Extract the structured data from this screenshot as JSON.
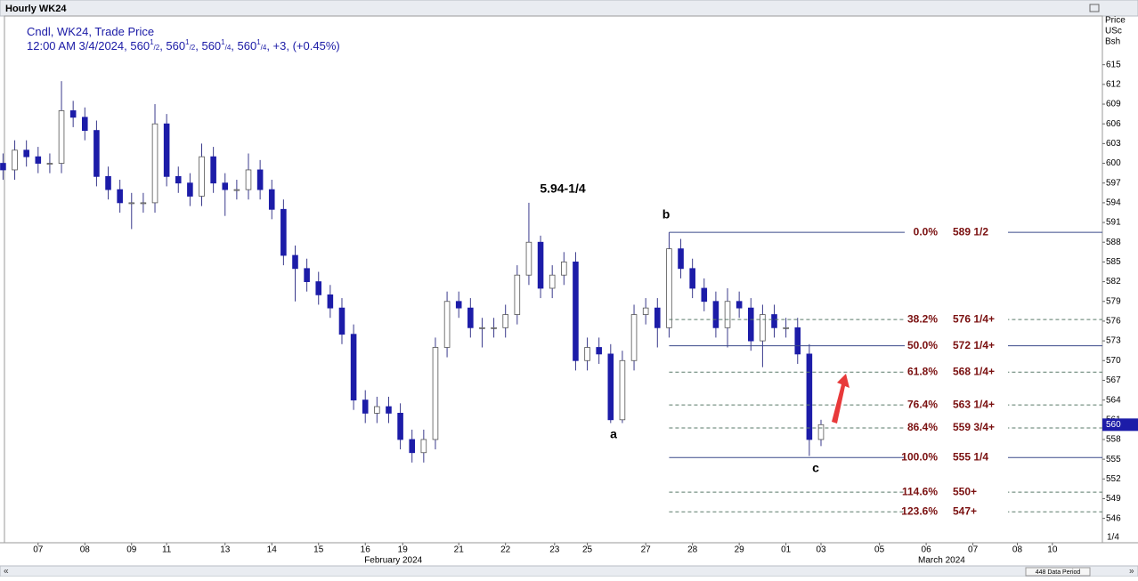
{
  "header": {
    "title": "Hourly WK24"
  },
  "footer": {
    "data_period": "448 Data Period"
  },
  "chart_data": {
    "type": "candlestick",
    "legend": [
      [
        {
          "text": "Cndl, WK24, Trade Price",
          "style": "normal"
        }
      ],
      [
        {
          "text": "12:00 AM 3/4/2024, 560",
          "style": "normal"
        },
        {
          "text": "1",
          "style": "sup"
        },
        {
          "text": "/2",
          "style": "sub"
        },
        {
          "text": ", 560",
          "style": "normal"
        },
        {
          "text": "1",
          "style": "sup"
        },
        {
          "text": "/2",
          "style": "sub"
        },
        {
          "text": ", 560",
          "style": "normal"
        },
        {
          "text": "1",
          "style": "sup"
        },
        {
          "text": "/4",
          "style": "sub"
        },
        {
          "text": ", 560",
          "style": "normal"
        },
        {
          "text": "1",
          "style": "sup"
        },
        {
          "text": "/4",
          "style": "sub"
        },
        {
          "text": ", +3, (+0.45%)",
          "style": "normal"
        }
      ]
    ],
    "y_axis_title": [
      "Price",
      "USc",
      "Bsh"
    ],
    "y_unit_label": "1/4",
    "ylim": [
      542.3,
      622.4
    ],
    "yticks": [
      546,
      549,
      552,
      555,
      558,
      561,
      564,
      567,
      570,
      573,
      576,
      579,
      582,
      585,
      588,
      591,
      594,
      597,
      600,
      603,
      606,
      609,
      612,
      615
    ],
    "xlim": [
      -0.72,
      22.77
    ],
    "xticks": [
      {
        "value": 0,
        "label": "07"
      },
      {
        "value": 1.0,
        "label": "08"
      },
      {
        "value": 2.0,
        "label": "09"
      },
      {
        "value": 2.75,
        "label": "11"
      },
      {
        "value": 4.0,
        "label": "13"
      },
      {
        "value": 5.0,
        "label": "14"
      },
      {
        "value": 6.0,
        "label": "15"
      },
      {
        "value": 7.0,
        "label": "16"
      },
      {
        "value": 7.8,
        "label": "19"
      },
      {
        "value": 9.0,
        "label": "21"
      },
      {
        "value": 10.0,
        "label": "22"
      },
      {
        "value": 11.05,
        "label": "23"
      },
      {
        "value": 11.75,
        "label": "25"
      },
      {
        "value": 13.0,
        "label": "27"
      },
      {
        "value": 14.0,
        "label": "28"
      },
      {
        "value": 15.0,
        "label": "29"
      },
      {
        "value": 16.0,
        "label": "01"
      },
      {
        "value": 16.75,
        "label": "03"
      },
      {
        "value": 18.0,
        "label": "05"
      },
      {
        "value": 19.0,
        "label": "06"
      },
      {
        "value": 20.0,
        "label": "07"
      },
      {
        "value": 20.95,
        "label": "08"
      },
      {
        "value": 21.7,
        "label": "10"
      }
    ],
    "months": [
      {
        "value": 7.6,
        "label": "February 2024"
      },
      {
        "value": 19.33,
        "label": "March 2024"
      }
    ],
    "x": [
      -0.75,
      -0.5,
      -0.25,
      0,
      0.25,
      0.5,
      0.75,
      1,
      1.25,
      1.5,
      1.75,
      2,
      2.25,
      2.5,
      2.75,
      3,
      3.25,
      3.5,
      3.75,
      4,
      4.25,
      4.5,
      4.75,
      5,
      5.25,
      5.5,
      5.75,
      6,
      6.25,
      6.5,
      6.75,
      7,
      7.25,
      7.5,
      7.75,
      8,
      8.25,
      8.5,
      8.75,
      9,
      9.25,
      9.5,
      9.75,
      10,
      10.25,
      10.5,
      10.75,
      11,
      11.25,
      11.5,
      11.75,
      12,
      12.25,
      12.5,
      12.75,
      13,
      13.25,
      13.5,
      13.75,
      14,
      14.25,
      14.5,
      14.75,
      15,
      15.25,
      15.5,
      15.75,
      16,
      16.25,
      16.5,
      16.75
    ],
    "open": [
      600,
      599,
      602,
      601,
      600,
      600,
      608,
      607,
      605,
      598,
      596,
      594,
      594,
      594,
      606,
      598,
      597,
      595,
      601,
      597,
      596,
      596,
      599,
      596,
      593,
      586,
      584,
      582,
      580,
      578,
      574,
      564,
      562,
      563,
      562,
      558,
      556,
      558,
      572,
      579,
      578,
      575,
      575,
      575,
      577,
      583,
      588,
      581,
      583,
      585,
      570,
      572,
      571,
      561,
      570,
      577,
      578,
      575,
      587,
      584,
      581,
      579,
      575,
      579,
      578,
      573,
      577,
      575,
      575,
      571,
      558
    ],
    "high": [
      601.5,
      603.5,
      603.5,
      602.5,
      601.5,
      612.5,
      609.5,
      608.5,
      606.5,
      599.5,
      597.5,
      595.5,
      595.5,
      609,
      607.5,
      599.5,
      598.5,
      603,
      602.5,
      598.5,
      597.5,
      601.5,
      600.5,
      597.5,
      594.5,
      587.5,
      585.5,
      583.5,
      581.5,
      579.5,
      575.5,
      565.5,
      564.5,
      564.5,
      563.5,
      559.5,
      559.5,
      573.5,
      580.5,
      580.5,
      579.5,
      576.5,
      576.5,
      578.5,
      584.5,
      594,
      589,
      584.5,
      586.5,
      586.5,
      573.5,
      573.5,
      572.5,
      571.5,
      578.5,
      579.5,
      579.5,
      589.5,
      588.5,
      585.5,
      582.5,
      580.5,
      581,
      580.5,
      579.5,
      578.5,
      578.5,
      576.5,
      576.5,
      572.5,
      561
    ],
    "low": [
      597.5,
      597.5,
      599.5,
      598.5,
      598.5,
      598.5,
      605.5,
      603.5,
      596.5,
      594.5,
      592.5,
      590,
      592.5,
      592.5,
      596.5,
      595.5,
      593.5,
      593.5,
      595.5,
      592,
      594.5,
      594.5,
      594.5,
      591.5,
      584.5,
      579,
      580.5,
      578.5,
      576.5,
      572.5,
      562.5,
      560.5,
      560.5,
      560.5,
      556.5,
      554.5,
      554.5,
      556.5,
      570.5,
      576.5,
      573.5,
      572,
      573.5,
      573.5,
      575.5,
      581.5,
      579.5,
      579.5,
      581.5,
      568.5,
      568.5,
      569.5,
      560.5,
      560.5,
      568.5,
      575.5,
      572,
      573.5,
      582.5,
      579.5,
      577.5,
      573.5,
      572,
      576.5,
      571.5,
      569,
      573.5,
      573.5,
      569.5,
      555.5,
      557
    ],
    "close": [
      599,
      602,
      601,
      600,
      600,
      608,
      607,
      605,
      598,
      596,
      594,
      594,
      594,
      606,
      598,
      597,
      595,
      601,
      597,
      596,
      596,
      599,
      596,
      593,
      586,
      584,
      582,
      580,
      578,
      574,
      564,
      562,
      563,
      562,
      558,
      556,
      558,
      572,
      579,
      578,
      575,
      575,
      575,
      577,
      583,
      588,
      581,
      583,
      585,
      570,
      572,
      571,
      561,
      570,
      577,
      578,
      575,
      587,
      584,
      581,
      579,
      575,
      579,
      578,
      573,
      577,
      575,
      575,
      571,
      558,
      560.25
    ],
    "up_color": "#ffffff",
    "down_color": "#1c1ca8",
    "wick_color": "#3a3a8c",
    "last_price": {
      "value": 560.25,
      "label": "560"
    },
    "annotations": {
      "peak": "5.94-1/4",
      "a": "a",
      "b": "b",
      "c": "c"
    },
    "fib_levels": [
      {
        "pct": "0.0%",
        "label": "589 1/2",
        "value": 589.5,
        "style": "solid"
      },
      {
        "pct": "38.2%",
        "label": "576 1/4+",
        "value": 576.25,
        "style": "dashed"
      },
      {
        "pct": "50.0%",
        "label": "572 1/4+",
        "value": 572.25,
        "style": "solid"
      },
      {
        "pct": "61.8%",
        "label": "568 1/4+",
        "value": 568.25,
        "style": "dashed"
      },
      {
        "pct": "76.4%",
        "label": "563 1/4+",
        "value": 563.25,
        "style": "dashed"
      },
      {
        "pct": "86.4%",
        "label": "559 3/4+",
        "value": 559.75,
        "style": "dashed"
      },
      {
        "pct": "100.0%",
        "label": "555 1/4",
        "value": 555.25,
        "style": "solid"
      },
      {
        "pct": "114.6%",
        "label": "550+",
        "value": 550,
        "style": "dashed"
      },
      {
        "pct": "123.6%",
        "label": "547+",
        "value": 547,
        "style": "dashed"
      }
    ]
  }
}
